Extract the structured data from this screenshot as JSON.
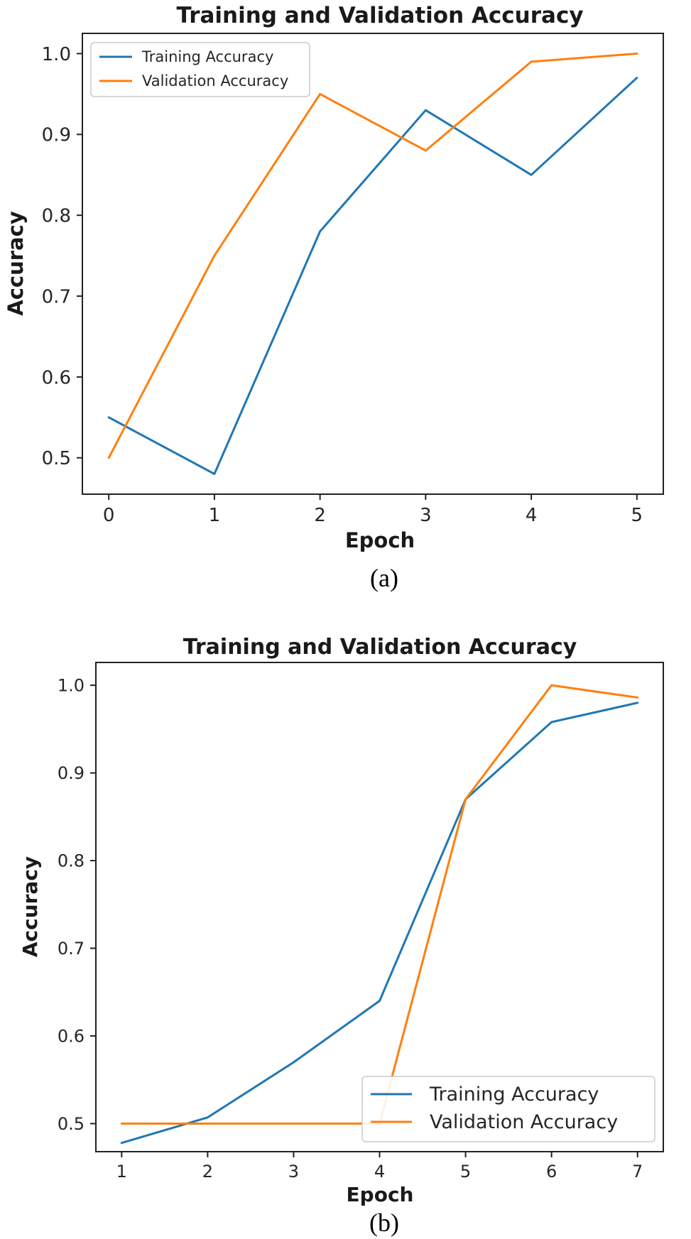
{
  "chart_data": [
    {
      "type": "line",
      "caption": "(a)",
      "title": "Training and Validation Accuracy",
      "xlabel": "Epoch",
      "ylabel": "Accuracy",
      "x": [
        0,
        1,
        2,
        3,
        4,
        5
      ],
      "xticks": [
        "0",
        "1",
        "2",
        "3",
        "4",
        "5"
      ],
      "yticks": [
        "0.5",
        "0.6",
        "0.7",
        "0.8",
        "0.9",
        "1.0"
      ],
      "xlim": [
        -0.25,
        5.25
      ],
      "ylim": [
        0.455,
        1.025
      ],
      "legend_position": "top-left",
      "grid": false,
      "series": [
        {
          "name": "Training Accuracy",
          "color": "#1f77b4",
          "values": [
            0.55,
            0.48,
            0.78,
            0.93,
            0.85,
            0.97
          ]
        },
        {
          "name": "Validation Accuracy",
          "color": "#ff7f0e",
          "values": [
            0.5,
            0.75,
            0.95,
            0.88,
            0.99,
            1.0
          ]
        }
      ]
    },
    {
      "type": "line",
      "caption": "(b)",
      "title": "Training and Validation Accuracy",
      "xlabel": "Epoch",
      "ylabel": "Accuracy",
      "x": [
        1,
        2,
        3,
        4,
        5,
        6,
        7
      ],
      "xticks": [
        "1",
        "2",
        "3",
        "4",
        "5",
        "6",
        "7"
      ],
      "yticks": [
        "0.5",
        "0.6",
        "0.7",
        "0.8",
        "0.9",
        "1.0"
      ],
      "xlim": [
        0.7,
        7.3
      ],
      "ylim": [
        0.468,
        1.026
      ],
      "legend_position": "lower-right",
      "grid": false,
      "series": [
        {
          "name": "Training Accuracy",
          "color": "#1f77b4",
          "values": [
            0.478,
            0.507,
            0.57,
            0.64,
            0.87,
            0.958,
            0.98
          ]
        },
        {
          "name": "Validation Accuracy",
          "color": "#ff7f0e",
          "values": [
            0.5,
            0.5,
            0.5,
            0.5,
            0.87,
            1.0,
            0.986
          ]
        }
      ]
    }
  ]
}
